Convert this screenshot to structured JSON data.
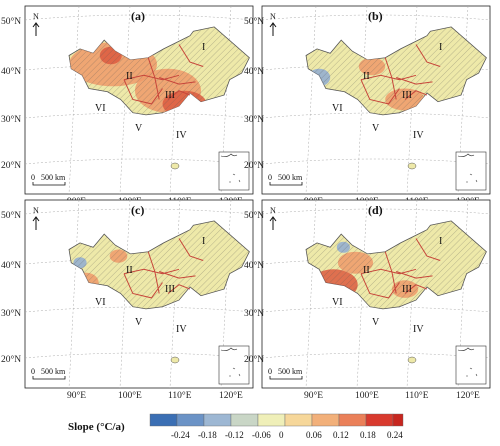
{
  "latitude_labels": [
    "50°N",
    "40°N",
    "30°N",
    "20°N"
  ],
  "longitude_labels": [
    "90°E",
    "100°E",
    "110°E",
    "120°E"
  ],
  "north_arrow": "N",
  "scale_bar": {
    "zero": "0",
    "label": "500 km"
  },
  "panels": [
    {
      "label": "(a)"
    },
    {
      "label": "(b)"
    },
    {
      "label": "(c)"
    },
    {
      "label": "(d)"
    }
  ],
  "regions": [
    "I",
    "II",
    "III",
    "IV",
    "V",
    "VI"
  ],
  "legend": {
    "title": "Slope (°C/a)",
    "ticks": [
      "-0.24",
      "-0.18",
      "-0.12",
      "-0.06",
      "0",
      "0.06",
      "0.12",
      "0.18",
      "0.24"
    ],
    "colors": [
      "#3b6fb4",
      "#6b93c6",
      "#9db7d3",
      "#c9d6c6",
      "#efefb8",
      "#f6d79a",
      "#f2b07a",
      "#ea8059",
      "#d83a2e"
    ]
  },
  "map_colors": {
    "base": "#eee9a9",
    "warm": "#ef9a6a",
    "hot": "#dc5a40",
    "cool": "#8fabd2",
    "boundary": "#c7453a",
    "outline": "#555555"
  }
}
